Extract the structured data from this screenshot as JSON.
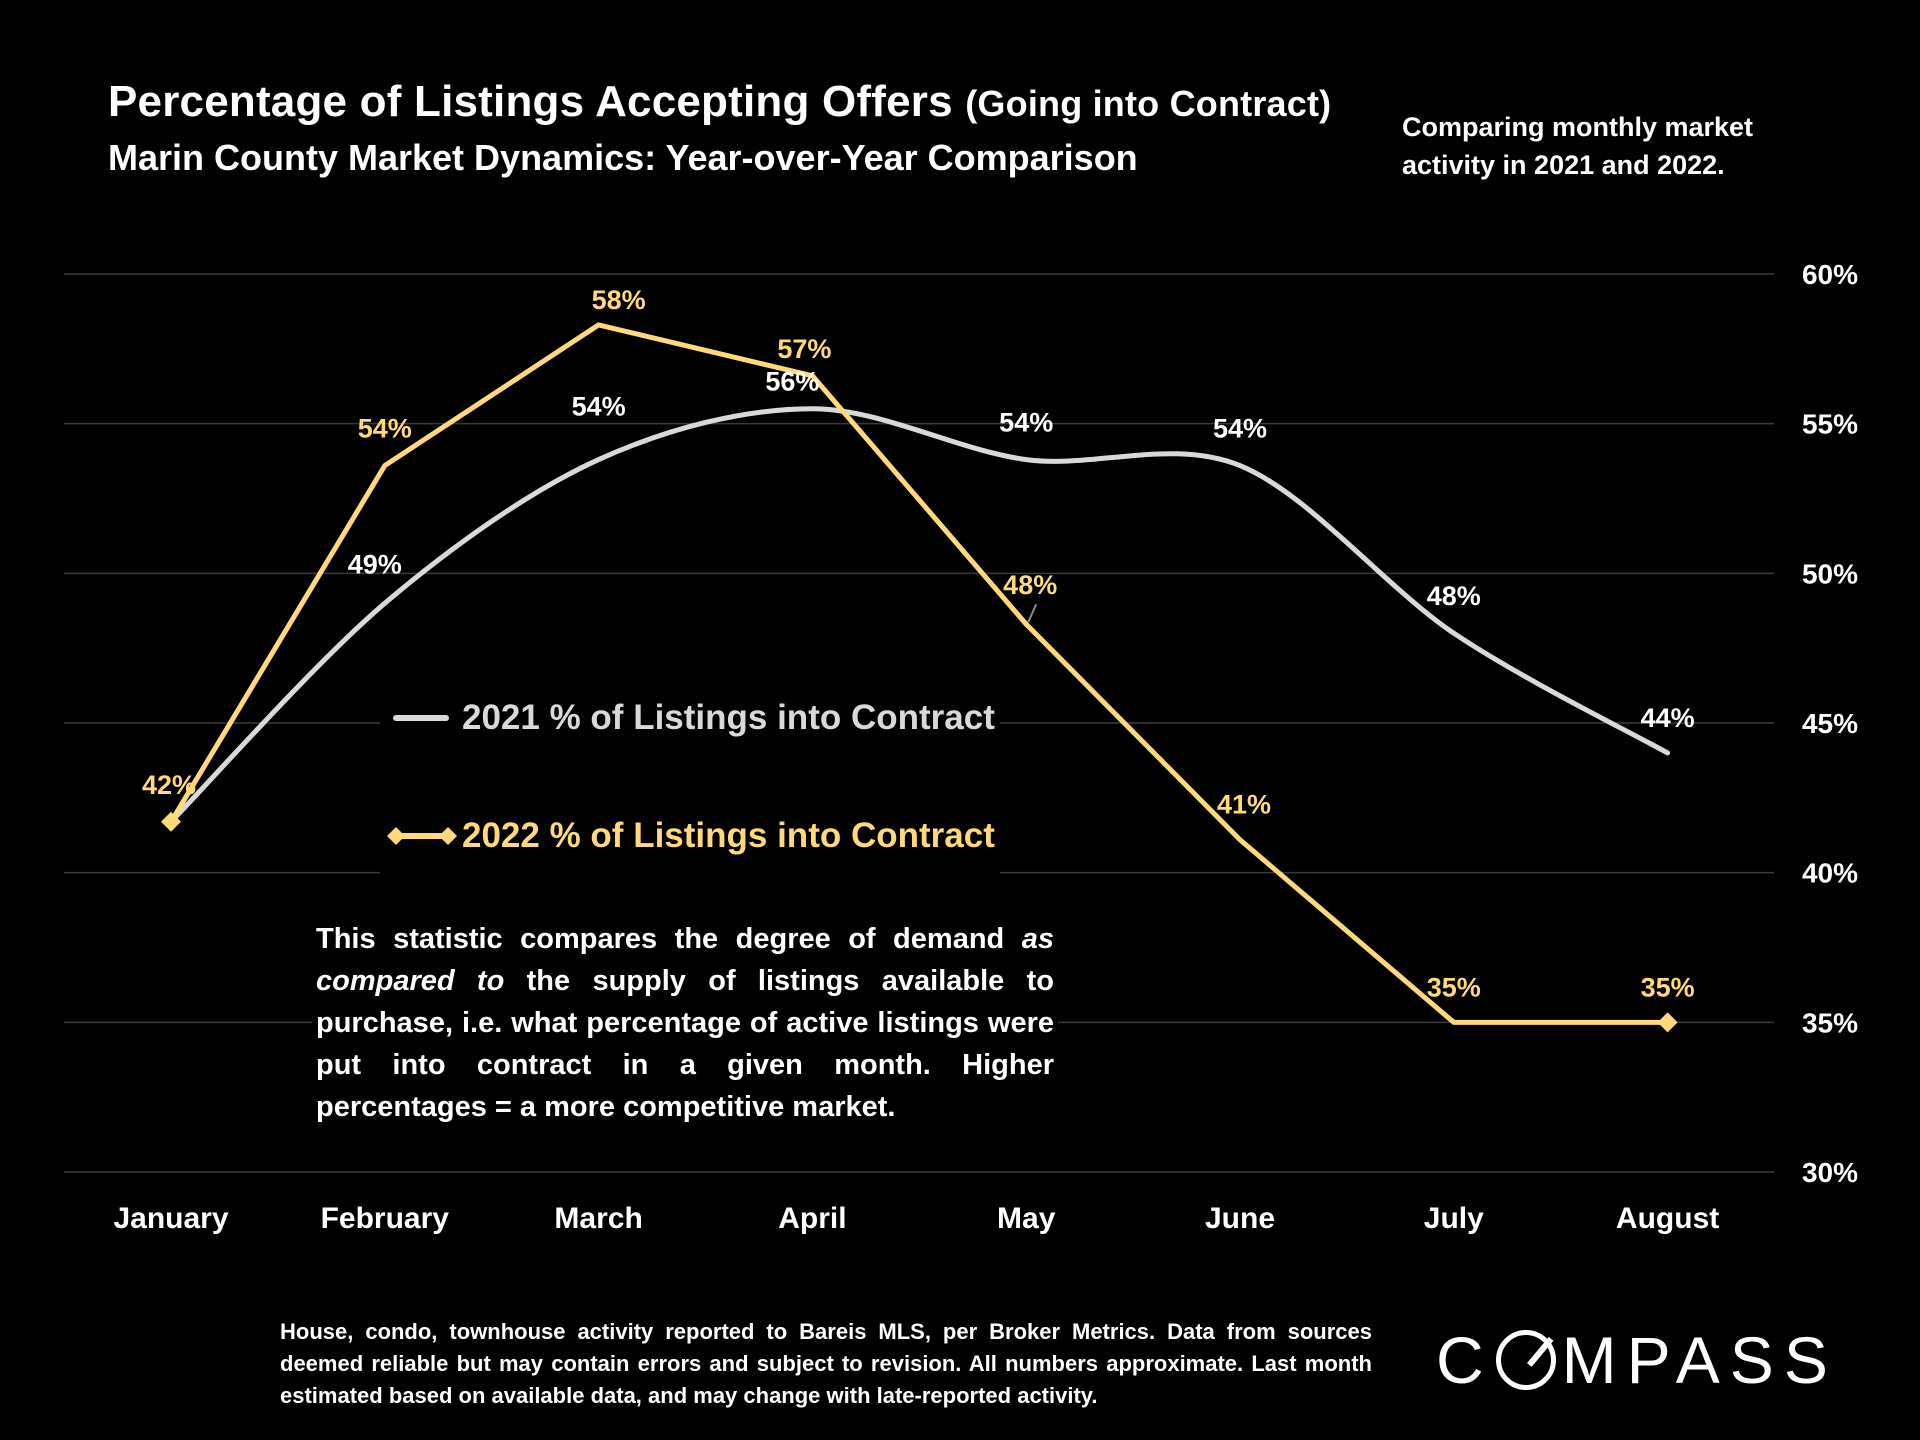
{
  "header": {
    "title": "Percentage of Listings Accepting Offers",
    "title_paren": "(Going into Contract)",
    "subtitle": "Marin County Market Dynamics: Year-over-Year Comparison",
    "side_note": "Comparing monthly market activity in 2021 and 2022."
  },
  "description_html_parts": {
    "p1": "This statistic compares the degree of demand ",
    "em1": "as compared to",
    "p2": " the supply of listings available to purchase, i.e. what percentage of active listings were put into contract in a given month. Higher percentages = a more competitive market."
  },
  "footnote": "House, condo, townhouse activity reported to Bareis MLS, per Broker Metrics. Data from sources deemed reliable but may contain errors and subject to revision. All numbers approximate. Last month estimated based on available data, and may change with late-reported activity.",
  "logo": {
    "pre": "C",
    "post": "MPASS"
  },
  "colors": {
    "background": "#000000",
    "series_2021": "#d9d9d9",
    "series_2022": "#ffd97a",
    "grid": "#3a3a3a"
  },
  "chart_data": {
    "type": "line",
    "categories": [
      "January",
      "February",
      "March",
      "April",
      "May",
      "June",
      "July",
      "August"
    ],
    "ylim": [
      30,
      60
    ],
    "yticks": [
      30,
      35,
      40,
      45,
      50,
      55,
      60
    ],
    "ytick_labels": [
      "30%",
      "35%",
      "40%",
      "45%",
      "50%",
      "55%",
      "60%"
    ],
    "y_axis_position": "right",
    "grid": true,
    "series": [
      {
        "name": "2021 % of Listings into Contract",
        "color": "#d9d9d9",
        "smooth": true,
        "marker": "none",
        "values": [
          41.7,
          49.0,
          53.8,
          55.5,
          53.8,
          53.6,
          48.0,
          44.0
        ],
        "labels": [
          "",
          "49%",
          "54%",
          "56%",
          "54%",
          "54%",
          "48%",
          "44%"
        ]
      },
      {
        "name": "2022 % of Listings into Contract",
        "color": "#ffd97a",
        "smooth": false,
        "marker": "diamond",
        "values": [
          41.7,
          53.6,
          58.3,
          56.6,
          48.3,
          41.1,
          35.0,
          35.0
        ],
        "labels": [
          "42%",
          "54%",
          "58%",
          "57%",
          "48%",
          "41%",
          "35%",
          "35%"
        ]
      }
    ],
    "legend": "center-left"
  }
}
